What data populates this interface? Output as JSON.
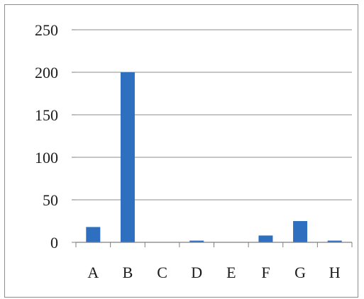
{
  "chart_data": {
    "type": "bar",
    "title": "",
    "xlabel": "",
    "ylabel": "",
    "categories": [
      "A",
      "B",
      "C",
      "D",
      "E",
      "F",
      "G",
      "H"
    ],
    "values": [
      18,
      200,
      0,
      2,
      0,
      8,
      25,
      2
    ],
    "ylim": [
      0,
      250
    ],
    "yticks": [
      0,
      50,
      100,
      150,
      200,
      250
    ],
    "grid": true,
    "legend": "none",
    "colors": {
      "bar": "#2e6fbf",
      "grid": "#8c8c8c",
      "axis": "#7f7f7f",
      "text": "#1a1a1a"
    }
  }
}
